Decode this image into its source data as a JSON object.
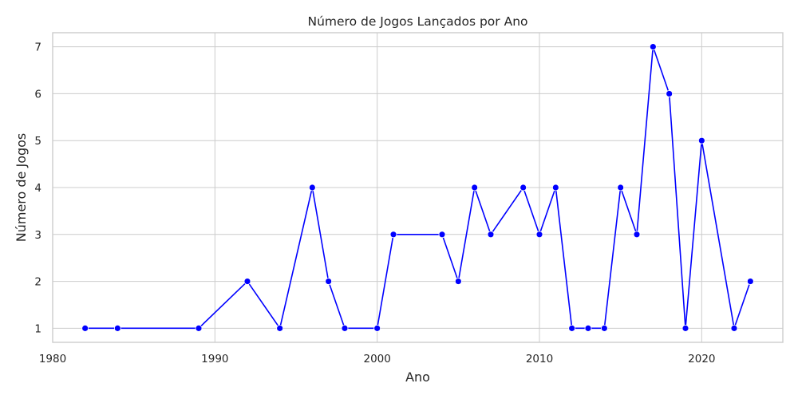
{
  "chart_data": {
    "type": "line",
    "title": "Número de Jogos Lançados por Ano",
    "xlabel": "Ano",
    "ylabel": "Número de Jogos",
    "xlim": [
      1980,
      2025
    ],
    "ylim": [
      0.7,
      7.3
    ],
    "x_ticks": [
      1980,
      1990,
      2000,
      2010,
      2020
    ],
    "y_ticks": [
      1,
      2,
      3,
      4,
      5,
      6,
      7
    ],
    "grid": true,
    "series": [
      {
        "color": "#0000ff",
        "marker": "circle",
        "x": [
          1982,
          1984,
          1989,
          1992,
          1994,
          1996,
          1997,
          1998,
          2000,
          2001,
          2004,
          2005,
          2006,
          2007,
          2009,
          2010,
          2011,
          2012,
          2013,
          2014,
          2015,
          2016,
          2017,
          2018,
          2019,
          2020,
          2022,
          2023
        ],
        "y": [
          1,
          1,
          1,
          2,
          1,
          4,
          2,
          1,
          1,
          3,
          3,
          2,
          4,
          3,
          4,
          3,
          4,
          1,
          1,
          1,
          4,
          3,
          7,
          6,
          1,
          5,
          1,
          2
        ]
      }
    ]
  }
}
